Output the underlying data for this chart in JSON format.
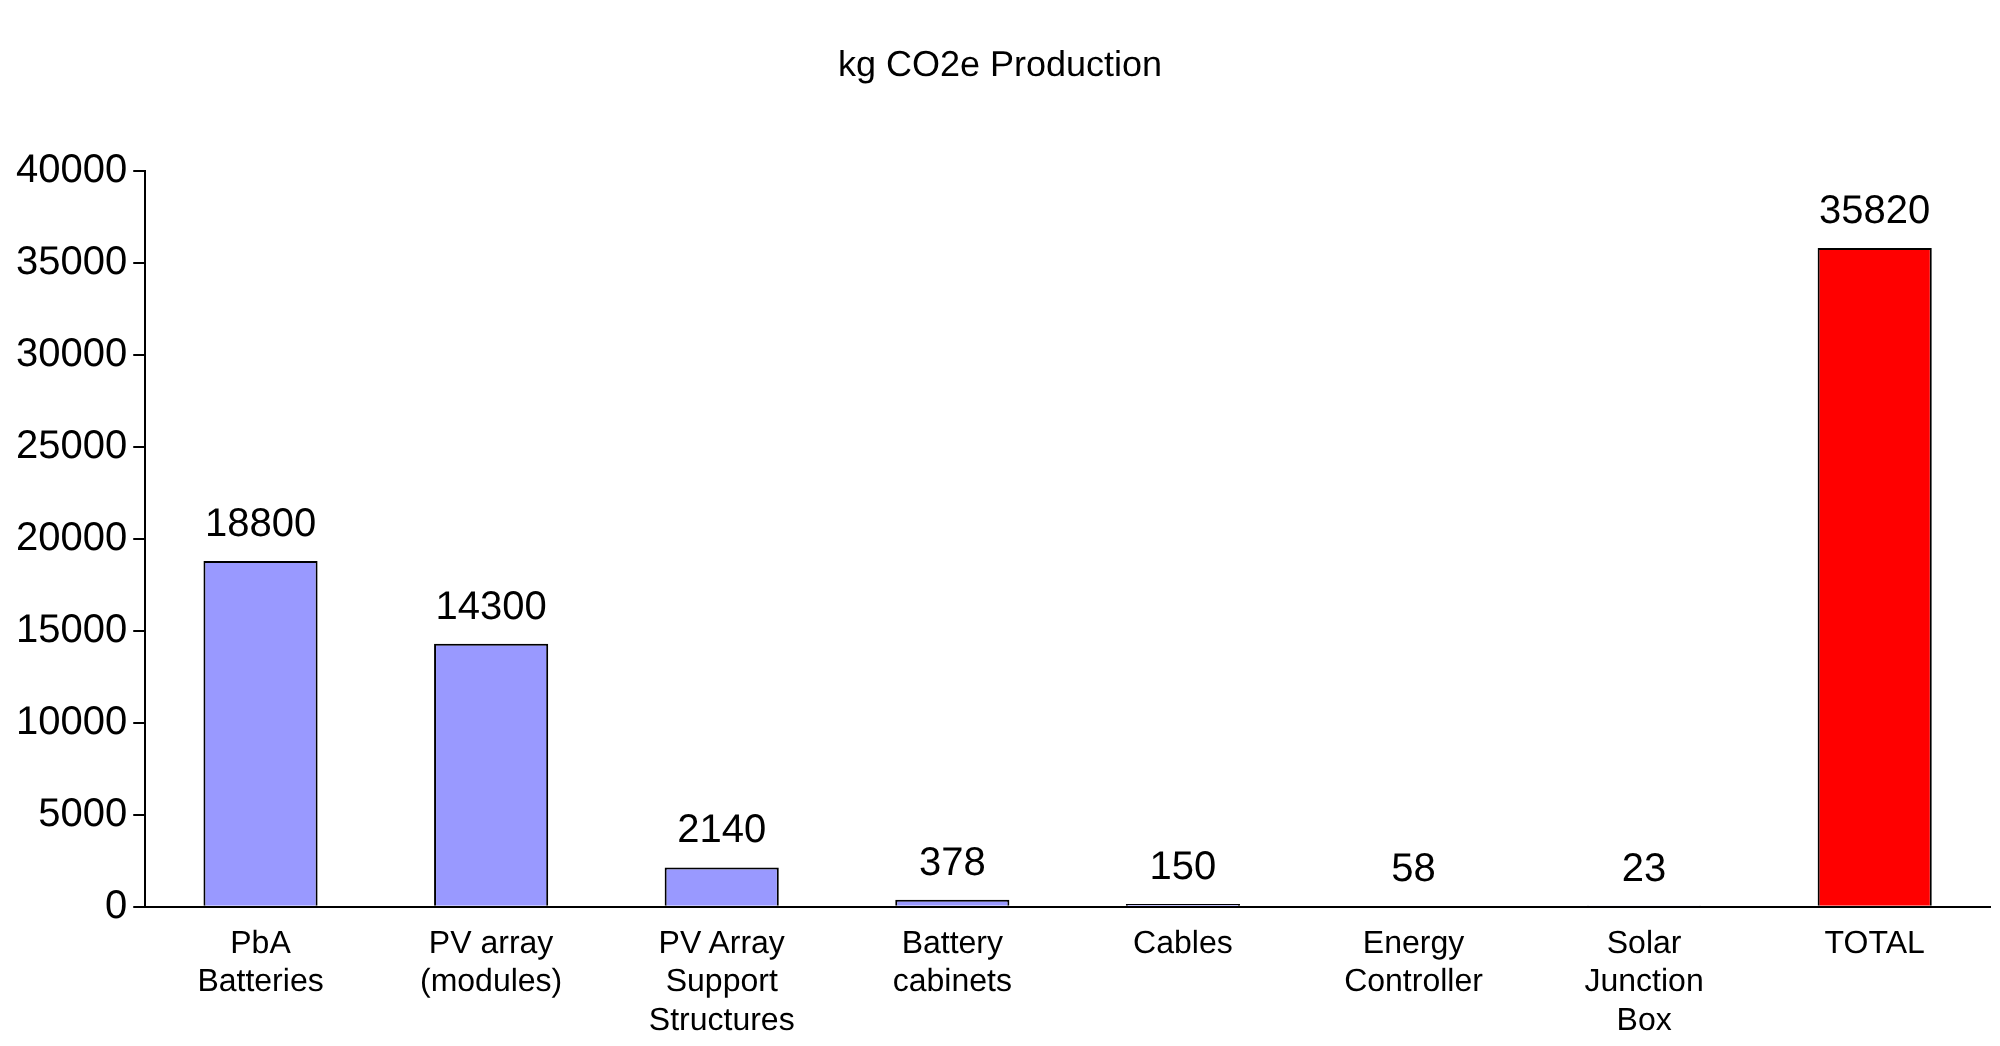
{
  "chart_data": {
    "type": "bar",
    "title": "kg CO2e Production",
    "categories": [
      "PbA Batteries",
      "PV array (modules)",
      "PV Array Support Structures",
      "Battery cabinets",
      "Cables",
      "Energy Controller",
      "Solar Junction Box",
      "TOTAL"
    ],
    "values": [
      18800,
      14300,
      2140,
      378,
      150,
      58,
      23,
      35820
    ],
    "colors": [
      "#9999ff",
      "#9999ff",
      "#9999ff",
      "#9999ff",
      "#9999ff",
      "#9999ff",
      "#9999ff",
      "#ff0000"
    ],
    "ylim": [
      0,
      40000
    ],
    "yticks": [
      0,
      5000,
      10000,
      15000,
      20000,
      25000,
      30000,
      35000,
      40000
    ],
    "data_labels": true,
    "grid": false,
    "legend": false
  }
}
